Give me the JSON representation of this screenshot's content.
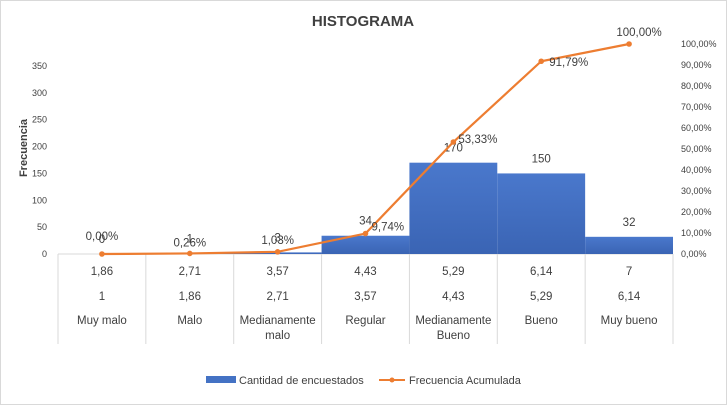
{
  "chart_data": {
    "type": "bar",
    "title": "HISTOGRAMA",
    "ylabel": "Frecuencia",
    "ylim": [
      0,
      350
    ],
    "y2lim": [
      0,
      100
    ],
    "yticks": [
      "0",
      "50",
      "100",
      "150",
      "200",
      "250",
      "300",
      "350"
    ],
    "y2ticks": [
      "0,00%",
      "10,00%",
      "20,00%",
      "30,00%",
      "40,00%",
      "50,00%",
      "60,00%",
      "70,00%",
      "80,00%",
      "90,00%",
      "100,00%"
    ],
    "categories": [
      "Muy malo",
      "Malo",
      "Medianamente malo",
      "Regular",
      "Medianamente Bueno",
      "Bueno",
      "Muy bueno"
    ],
    "category_lines": [
      [
        "Muy malo"
      ],
      [
        "Malo"
      ],
      [
        "Medianamente",
        "malo"
      ],
      [
        "Regular"
      ],
      [
        "Medianamente",
        "Bueno"
      ],
      [
        "Bueno"
      ],
      [
        "Muy bueno"
      ]
    ],
    "upper_limits": [
      "1,86",
      "2,71",
      "3,57",
      "4,43",
      "5,29",
      "6,14",
      "7"
    ],
    "lower_limits": [
      "1",
      "1,86",
      "2,71",
      "3,57",
      "4,43",
      "5,29",
      "6,14"
    ],
    "series": [
      {
        "name": "Cantidad de encuestados",
        "type": "bar",
        "color": "#4472c4",
        "values": [
          0,
          1,
          3,
          34,
          170,
          150,
          32
        ],
        "labels": [
          "0",
          "1",
          "3",
          "34",
          "170",
          "150",
          "32"
        ]
      },
      {
        "name": "Frecuencia Acumulada",
        "type": "line",
        "axis": "secondary",
        "color": "#ed7d31",
        "values": [
          0,
          0.26,
          1.03,
          9.74,
          53.33,
          91.79,
          100
        ],
        "labels": [
          "0,00%",
          "0,26%",
          "1,03%",
          "9,74%",
          "53,33%",
          "91,79%",
          "100,00%"
        ]
      }
    ],
    "legend": "bottom",
    "grid": false
  }
}
